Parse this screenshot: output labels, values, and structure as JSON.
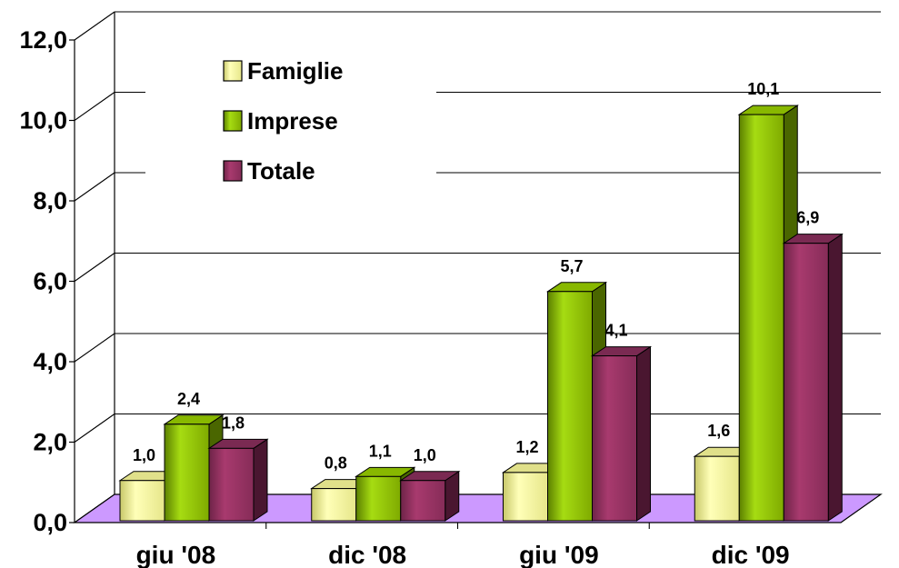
{
  "chart_data": {
    "type": "bar",
    "categories": [
      "giu '08",
      "dic '08",
      "giu '09",
      "dic '09"
    ],
    "series": [
      {
        "name": "Famiglie",
        "values": [
          1.0,
          0.8,
          1.2,
          1.6
        ],
        "value_labels": [
          "1,0",
          "0,8",
          "1,2",
          "1,6"
        ],
        "color": "#ffff99"
      },
      {
        "name": "Imprese",
        "values": [
          2.4,
          1.1,
          5.7,
          10.1
        ],
        "value_labels": [
          "2,4",
          "1,1",
          "5,7",
          "10,1"
        ],
        "color": "#99cc00"
      },
      {
        "name": "Totale",
        "values": [
          1.8,
          1.0,
          4.1,
          6.9
        ],
        "value_labels": [
          "1,8",
          "1,0",
          "4,1",
          "6,9"
        ],
        "color": "#993366"
      }
    ],
    "yticks": [
      0,
      2,
      4,
      6,
      8,
      10,
      12
    ],
    "ytick_labels": [
      "0,0",
      "2,0",
      "4,0",
      "6,0",
      "8,0",
      "10,0",
      "12,0"
    ],
    "ylim": [
      0,
      12
    ],
    "grid": true,
    "legend_position": "top-left",
    "floor_color": "#cc99ff",
    "title": "",
    "xlabel": "",
    "ylabel": ""
  }
}
